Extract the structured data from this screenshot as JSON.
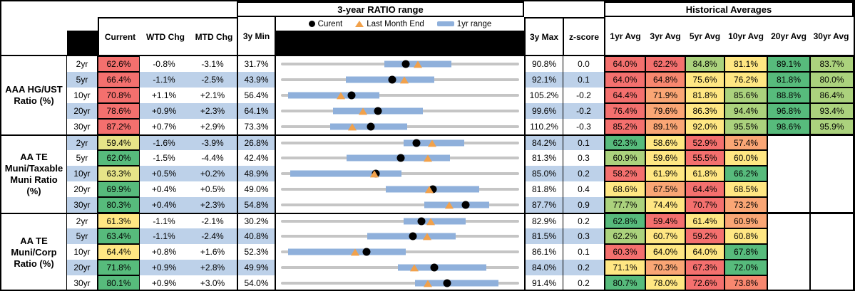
{
  "palette": {
    "r": "#F4706E",
    "s": "#F8876F",
    "o": "#FAA675",
    "y": "#FFE783",
    "yg": "#E6E488",
    "lg": "#ABD27D",
    "g": "#57BB7C",
    "stripe": "#BDD1E9",
    "bar_blue": "#8FB0DB",
    "track_gray": "#C5C5C5",
    "triangle_orange": "#F1A14B",
    "dot_black": "#000000"
  },
  "header": {
    "chart_title": "3-year RATIO range",
    "hist_title": "Historical Averages",
    "current_label": "Current",
    "wtd_label": "WTD Chg",
    "mtd_label": "MTD Chg",
    "min_label": "3y Min",
    "max_label": "3y Max",
    "z_label": "z-score",
    "avg_labels": [
      "1yr Avg",
      "3yr Avg",
      "5yr Avg",
      "10yr Avg",
      "20yr Avg",
      "30yr Avg"
    ],
    "legend": {
      "current": "Curent",
      "last_month_end": "Last Month End",
      "one_yr_range": "1yr range"
    }
  },
  "groups": [
    {
      "label": "AAA HG/UST\nRatio (%)",
      "rows": [
        {
          "tenor": "2yr",
          "current": "62.6%",
          "cc": "r",
          "wtd": "-0.8%",
          "mtd": "-3.1%",
          "min": "31.7%",
          "max": "90.8%",
          "z": "0.0",
          "avgs": [
            {
              "v": "64.0%",
              "c": "r"
            },
            {
              "v": "62.2%",
              "c": "r"
            },
            {
              "v": "84.8%",
              "c": "lg"
            },
            {
              "v": "81.1%",
              "c": "y"
            },
            {
              "v": "89.1%",
              "c": "g"
            },
            {
              "v": "83.7%",
              "c": "lg"
            }
          ]
        },
        {
          "tenor": "5yr",
          "current": "66.4%",
          "cc": "r",
          "wtd": "-1.1%",
          "mtd": "-2.5%",
          "min": "43.9%",
          "max": "92.1%",
          "z": "0.1",
          "avgs": [
            {
              "v": "64.0%",
              "c": "r"
            },
            {
              "v": "64.8%",
              "c": "s"
            },
            {
              "v": "75.6%",
              "c": "y"
            },
            {
              "v": "76.2%",
              "c": "y"
            },
            {
              "v": "81.8%",
              "c": "g"
            },
            {
              "v": "80.0%",
              "c": "lg"
            }
          ]
        },
        {
          "tenor": "10yr",
          "current": "70.8%",
          "cc": "r",
          "wtd": "+1.1%",
          "mtd": "+2.1%",
          "min": "56.4%",
          "max": "105.2%",
          "z": "-0.2",
          "avgs": [
            {
              "v": "64.4%",
              "c": "r"
            },
            {
              "v": "71.9%",
              "c": "o"
            },
            {
              "v": "81.8%",
              "c": "y"
            },
            {
              "v": "85.6%",
              "c": "lg"
            },
            {
              "v": "88.8%",
              "c": "g"
            },
            {
              "v": "86.4%",
              "c": "lg"
            }
          ]
        },
        {
          "tenor": "20yr",
          "current": "78.6%",
          "cc": "r",
          "wtd": "+0.9%",
          "mtd": "+2.3%",
          "min": "64.1%",
          "max": "99.6%",
          "z": "-0.2",
          "avgs": [
            {
              "v": "76.4%",
              "c": "r"
            },
            {
              "v": "79.6%",
              "c": "o"
            },
            {
              "v": "86.3%",
              "c": "y"
            },
            {
              "v": "94.4%",
              "c": "lg"
            },
            {
              "v": "96.8%",
              "c": "g"
            },
            {
              "v": "93.4%",
              "c": "lg"
            }
          ]
        },
        {
          "tenor": "30yr",
          "current": "87.2%",
          "cc": "r",
          "wtd": "+0.7%",
          "mtd": "+2.9%",
          "min": "73.3%",
          "max": "110.2%",
          "z": "-0.3",
          "avgs": [
            {
              "v": "85.2%",
              "c": "r"
            },
            {
              "v": "89.1%",
              "c": "o"
            },
            {
              "v": "92.0%",
              "c": "y"
            },
            {
              "v": "95.5%",
              "c": "lg"
            },
            {
              "v": "98.6%",
              "c": "g"
            },
            {
              "v": "95.9%",
              "c": "lg"
            }
          ]
        }
      ]
    },
    {
      "label": "AA TE\nMuni/Taxable\nMuni Ratio\n(%)",
      "rows": [
        {
          "tenor": "2yr",
          "current": "59.4%",
          "cc": "yg",
          "wtd": "-1.6%",
          "mtd": "-3.9%",
          "min": "26.8%",
          "max": "84.2%",
          "z": "0.1",
          "avgs": [
            {
              "v": "62.3%",
              "c": "g"
            },
            {
              "v": "58.6%",
              "c": "y"
            },
            {
              "v": "52.9%",
              "c": "r"
            },
            {
              "v": "57.4%",
              "c": "o"
            }
          ]
        },
        {
          "tenor": "5yr",
          "current": "62.0%",
          "cc": "g",
          "wtd": "-1.5%",
          "mtd": "-4.4%",
          "min": "42.4%",
          "max": "81.3%",
          "z": "0.3",
          "avgs": [
            {
              "v": "60.9%",
              "c": "lg"
            },
            {
              "v": "59.6%",
              "c": "y"
            },
            {
              "v": "55.5%",
              "c": "r"
            },
            {
              "v": "60.0%",
              "c": "y"
            }
          ]
        },
        {
          "tenor": "10yr",
          "current": "63.3%",
          "cc": "yg",
          "wtd": "+0.5%",
          "mtd": "+0.2%",
          "min": "48.9%",
          "max": "85.0%",
          "z": "0.2",
          "avgs": [
            {
              "v": "58.2%",
              "c": "r"
            },
            {
              "v": "61.9%",
              "c": "y"
            },
            {
              "v": "61.8%",
              "c": "y"
            },
            {
              "v": "66.2%",
              "c": "g"
            }
          ]
        },
        {
          "tenor": "20yr",
          "current": "69.9%",
          "cc": "g",
          "wtd": "+0.4%",
          "mtd": "+0.5%",
          "min": "49.0%",
          "max": "81.8%",
          "z": "0.4",
          "avgs": [
            {
              "v": "68.6%",
              "c": "y"
            },
            {
              "v": "67.5%",
              "c": "o"
            },
            {
              "v": "64.4%",
              "c": "r"
            },
            {
              "v": "68.5%",
              "c": "y"
            }
          ]
        },
        {
          "tenor": "30yr",
          "current": "80.3%",
          "cc": "g",
          "wtd": "+0.4%",
          "mtd": "+2.3%",
          "min": "54.8%",
          "max": "87.7%",
          "z": "0.9",
          "avgs": [
            {
              "v": "77.7%",
              "c": "lg"
            },
            {
              "v": "74.4%",
              "c": "y"
            },
            {
              "v": "70.7%",
              "c": "r"
            },
            {
              "v": "73.2%",
              "c": "o"
            }
          ]
        }
      ]
    },
    {
      "label": "AA TE\nMuni/Corp\nRatio (%)",
      "rows": [
        {
          "tenor": "2yr",
          "current": "61.3%",
          "cc": "y",
          "wtd": "-1.1%",
          "mtd": "-2.1%",
          "min": "30.2%",
          "max": "82.9%",
          "z": "0.2",
          "avgs": [
            {
              "v": "62.8%",
              "c": "g"
            },
            {
              "v": "59.4%",
              "c": "r"
            },
            {
              "v": "61.4%",
              "c": "y"
            },
            {
              "v": "60.9%",
              "c": "o"
            }
          ]
        },
        {
          "tenor": "5yr",
          "current": "63.4%",
          "cc": "g",
          "wtd": "-1.1%",
          "mtd": "-2.4%",
          "min": "40.8%",
          "max": "81.5%",
          "z": "0.3",
          "avgs": [
            {
              "v": "62.2%",
              "c": "lg"
            },
            {
              "v": "60.7%",
              "c": "y"
            },
            {
              "v": "59.2%",
              "c": "r"
            },
            {
              "v": "60.8%",
              "c": "y"
            }
          ]
        },
        {
          "tenor": "10yr",
          "current": "64.4%",
          "cc": "y",
          "wtd": "+0.8%",
          "mtd": "+1.6%",
          "min": "52.3%",
          "max": "86.1%",
          "z": "0.1",
          "avgs": [
            {
              "v": "60.3%",
              "c": "r"
            },
            {
              "v": "64.0%",
              "c": "y"
            },
            {
              "v": "64.0%",
              "c": "y"
            },
            {
              "v": "67.8%",
              "c": "g"
            }
          ]
        },
        {
          "tenor": "20yr",
          "current": "71.8%",
          "cc": "g",
          "wtd": "+0.9%",
          "mtd": "+2.8%",
          "min": "49.9%",
          "max": "84.0%",
          "z": "0.2",
          "avgs": [
            {
              "v": "71.1%",
              "c": "y"
            },
            {
              "v": "70.3%",
              "c": "o"
            },
            {
              "v": "67.3%",
              "c": "r"
            },
            {
              "v": "72.0%",
              "c": "g"
            }
          ]
        },
        {
          "tenor": "30yr",
          "current": "80.1%",
          "cc": "g",
          "wtd": "+0.9%",
          "mtd": "+3.0%",
          "min": "54.0%",
          "max": "91.4%",
          "z": "0.2",
          "avgs": [
            {
              "v": "80.7%",
              "c": "g"
            },
            {
              "v": "78.0%",
              "c": "y"
            },
            {
              "v": "72.6%",
              "c": "r"
            },
            {
              "v": "73.8%",
              "c": "s"
            }
          ]
        }
      ]
    }
  ],
  "chart_data": {
    "type": "range_bar",
    "title": "3-year RATIO range",
    "legend_entries": [
      "Curent",
      "Last Month End",
      "1yr range"
    ],
    "encoding": "gray track spans 3y Min to 3y Max; blue bar = 1yr range; black dot = current; orange triangle = last month end",
    "rows": [
      {
        "group": "AAA HG/UST Ratio (%)",
        "tenor": "2yr",
        "min": 31.7,
        "max": 90.8,
        "bar_low": 57.4,
        "bar_high": 74.0,
        "current": 62.6,
        "last_month_end": 65.7
      },
      {
        "group": "AAA HG/UST Ratio (%)",
        "tenor": "5yr",
        "min": 43.9,
        "max": 92.1,
        "bar_low": 57.1,
        "bar_high": 74.9,
        "current": 66.4,
        "last_month_end": 68.9
      },
      {
        "group": "AAA HG/UST Ratio (%)",
        "tenor": "10yr",
        "min": 56.4,
        "max": 105.2,
        "bar_low": 57.8,
        "bar_high": 76.5,
        "current": 70.8,
        "last_month_end": 68.7
      },
      {
        "group": "AAA HG/UST Ratio (%)",
        "tenor": "20yr",
        "min": 64.1,
        "max": 99.6,
        "bar_low": 71.9,
        "bar_high": 85.2,
        "current": 78.6,
        "last_month_end": 76.3
      },
      {
        "group": "AAA HG/UST Ratio (%)",
        "tenor": "30yr",
        "min": 73.3,
        "max": 110.2,
        "bar_low": 80.9,
        "bar_high": 92.9,
        "current": 87.2,
        "last_month_end": 84.3
      },
      {
        "group": "AA TE Muni/Taxable Muni Ratio (%)",
        "tenor": "2yr",
        "min": 26.8,
        "max": 84.2,
        "bar_low": 56.4,
        "bar_high": 71.0,
        "current": 59.4,
        "last_month_end": 63.3
      },
      {
        "group": "AA TE Muni/Taxable Muni Ratio (%)",
        "tenor": "5yr",
        "min": 42.4,
        "max": 81.3,
        "bar_low": 53.1,
        "bar_high": 70.0,
        "current": 62.0,
        "last_month_end": 66.4
      },
      {
        "group": "AA TE Muni/Taxable Muni Ratio (%)",
        "tenor": "10yr",
        "min": 48.9,
        "max": 85.0,
        "bar_low": 50.3,
        "bar_high": 67.2,
        "current": 63.3,
        "last_month_end": 63.1
      },
      {
        "group": "AA TE Muni/Taxable Muni Ratio (%)",
        "tenor": "20yr",
        "min": 49.0,
        "max": 81.8,
        "bar_low": 63.4,
        "bar_high": 76.3,
        "current": 69.9,
        "last_month_end": 69.4
      },
      {
        "group": "AA TE Muni/Taxable Muni Ratio (%)",
        "tenor": "30yr",
        "min": 54.8,
        "max": 87.7,
        "bar_low": 74.6,
        "bar_high": 83.6,
        "current": 80.3,
        "last_month_end": 78.0
      },
      {
        "group": "AA TE Muni/Corp Ratio (%)",
        "tenor": "2yr",
        "min": 30.2,
        "max": 82.9,
        "bar_low": 57.3,
        "bar_high": 71.0,
        "current": 61.3,
        "last_month_end": 63.4
      },
      {
        "group": "AA TE Muni/Corp Ratio (%)",
        "tenor": "5yr",
        "min": 40.8,
        "max": 81.5,
        "bar_low": 55.6,
        "bar_high": 70.7,
        "current": 63.4,
        "last_month_end": 65.8
      },
      {
        "group": "AA TE Muni/Corp Ratio (%)",
        "tenor": "10yr",
        "min": 52.3,
        "max": 86.1,
        "bar_low": 53.3,
        "bar_high": 70.0,
        "current": 64.4,
        "last_month_end": 62.8
      },
      {
        "group": "AA TE Muni/Corp Ratio (%)",
        "tenor": "20yr",
        "min": 49.9,
        "max": 84.0,
        "bar_low": 66.6,
        "bar_high": 79.3,
        "current": 71.8,
        "last_month_end": 69.0
      },
      {
        "group": "AA TE Muni/Corp Ratio (%)",
        "tenor": "30yr",
        "min": 54.0,
        "max": 91.4,
        "bar_low": 75.1,
        "bar_high": 88.1,
        "current": 80.1,
        "last_month_end": 77.1
      }
    ]
  }
}
